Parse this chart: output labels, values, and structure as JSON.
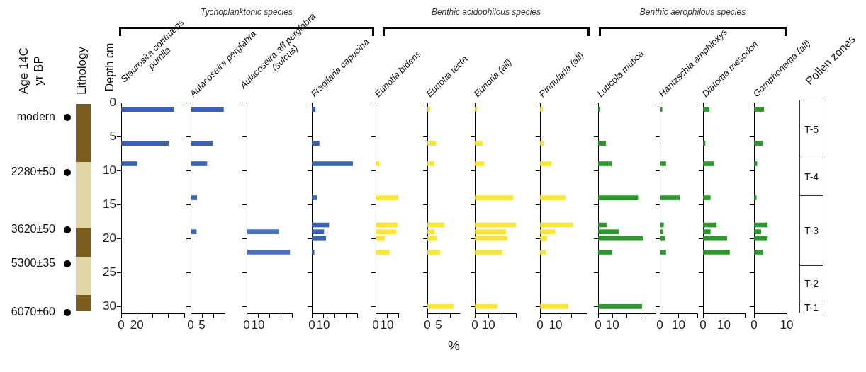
{
  "chart_data": [
    {
      "type": "other",
      "title": "Lithology",
      "ylabel": "Age 14C yr BP",
      "annotations": [
        "modern",
        "2280±50",
        "3620±50",
        "5300±35",
        "6070±60"
      ]
    },
    {
      "type": "other",
      "annotations": [
        "Tychoplanktonic species",
        "Benthic acidophilous species",
        "Benthic aerophilous species"
      ]
    },
    {
      "type": "bar",
      "orientation": "horizontal",
      "title": "Staurosira contruens pumila",
      "ylabel": "Depth cm",
      "color": "#3b62b0",
      "x": [
        1,
        6,
        9
      ],
      "values": [
        67,
        60,
        20
      ],
      "xlim": [
        0,
        80
      ],
      "xticks": [
        0,
        20,
        {
          "value": 40,
          "label": null
        },
        {
          "value": 60,
          "label": null
        },
        {
          "value": 80,
          "label": null
        }
      ],
      "ylim": [
        31,
        0
      ],
      "yticks": [
        0,
        5,
        10,
        15,
        20,
        25,
        30
      ]
    },
    {
      "type": "bar",
      "orientation": "horizontal",
      "title": "Aulacoseira perglabra",
      "color": "#3b62b0",
      "x": [
        1,
        6,
        9,
        14,
        19
      ],
      "values": [
        14.5,
        9.7,
        7.2,
        2.7,
        2.5
      ],
      "xlim": [
        0,
        15
      ],
      "xticks": [
        0,
        5,
        {
          "value": 10,
          "label": null
        },
        {
          "value": 15,
          "label": null
        }
      ],
      "ylim": [
        31,
        0
      ],
      "yticks": [
        0,
        5,
        10,
        15,
        20,
        25,
        30
      ],
      "tick_labels": "x"
    },
    {
      "type": "bar",
      "orientation": "horizontal",
      "title": "Aulacoseira aff perglabra (sulcus)",
      "color": "#4a70bb",
      "x": [
        19,
        22
      ],
      "values": [
        28.5,
        38
      ],
      "xlim": [
        0,
        40
      ],
      "xticks": [
        0,
        10,
        {
          "value": 20,
          "label": null
        },
        {
          "value": 30,
          "label": null
        },
        {
          "value": 40,
          "label": null
        }
      ],
      "ylim": [
        31,
        0
      ],
      "yticks": [
        0,
        5,
        10,
        15,
        20,
        25,
        30
      ],
      "tick_labels": "x"
    },
    {
      "type": "bar",
      "orientation": "horizontal",
      "title": "Fragilaria capucina",
      "color": "#3b62b0",
      "x": [
        1,
        6,
        9,
        14,
        18,
        19,
        20,
        22
      ],
      "values": [
        3,
        6.5,
        36,
        4.4,
        15,
        10.6,
        12.3,
        2
      ],
      "xlim": [
        0,
        40
      ],
      "xticks": [
        0,
        10,
        {
          "value": 20,
          "label": null
        },
        {
          "value": 30,
          "label": null
        },
        {
          "value": 40,
          "label": null
        }
      ],
      "ylim": [
        31,
        0
      ],
      "yticks": [
        0,
        5,
        10,
        15,
        20,
        25,
        30
      ],
      "tick_labels": "x"
    },
    {
      "type": "bar",
      "orientation": "horizontal",
      "title": "Eunotia bidens",
      "color": "#f9e43a",
      "x": [
        9,
        14,
        18,
        19,
        20,
        22
      ],
      "values": [
        3,
        20,
        19,
        18,
        7.7,
        12
      ],
      "xlim": [
        0,
        20
      ],
      "xticks": [
        0,
        10,
        {
          "value": 20,
          "label": null
        }
      ],
      "ylim": [
        31,
        0
      ],
      "yticks": [
        0,
        5,
        10,
        15,
        20,
        25,
        30
      ],
      "tick_labels": "x"
    },
    {
      "type": "bar",
      "orientation": "horizontal",
      "title": "Eunotia tecta",
      "xlabel": "%",
      "color": "#f9e43a",
      "x": [
        1,
        6,
        9,
        18,
        19,
        20,
        22,
        30
      ],
      "values": [
        1.1,
        3.6,
        2.9,
        7.4,
        3,
        4,
        5.5,
        11.3
      ],
      "xlim": [
        0,
        14
      ],
      "xticks": [
        0,
        5,
        {
          "value": 10,
          "label": null
        }
      ],
      "ylim": [
        31,
        0
      ],
      "yticks": [
        0,
        5,
        10,
        15,
        20,
        25,
        30
      ],
      "tick_labels": "x"
    },
    {
      "type": "bar",
      "orientation": "horizontal",
      "title": "Eunotia (all)",
      "color": "#f9e43a",
      "x": [
        1,
        6,
        9,
        14,
        18,
        19,
        20,
        22,
        30
      ],
      "values": [
        1.6,
        5.4,
        6.6,
        28,
        30,
        22.7,
        23.6,
        19.8,
        16.3
      ],
      "xlim": [
        0,
        30
      ],
      "xticks": [
        0,
        10,
        {
          "value": 20,
          "label": null
        },
        {
          "value": 30,
          "label": null
        }
      ],
      "ylim": [
        31,
        0
      ],
      "yticks": [
        0,
        5,
        10,
        15,
        20,
        25,
        30
      ],
      "tick_labels": "x"
    },
    {
      "type": "bar",
      "orientation": "horizontal",
      "title": "Pinnularia (all)",
      "color": "#f9e43a",
      "x": [
        1,
        6,
        9,
        14,
        18,
        19,
        20,
        22,
        30
      ],
      "values": [
        1.8,
        2.4,
        7.3,
        16.2,
        21,
        9.6,
        4.3,
        3.7,
        18
      ],
      "xlim": [
        0,
        30
      ],
      "xticks": [
        0,
        10,
        {
          "value": 20,
          "label": null
        },
        {
          "value": 30,
          "label": null
        }
      ],
      "ylim": [
        31,
        0
      ],
      "yticks": [
        0,
        5,
        10,
        15,
        20,
        25,
        30
      ],
      "tick_labels": "x"
    },
    {
      "type": "bar",
      "orientation": "horizontal",
      "title": "Luticola mutica",
      "color": "#2f962f",
      "x": [
        1,
        6,
        9,
        14,
        18,
        19,
        20,
        22,
        30
      ],
      "values": [
        1.2,
        5.3,
        9.3,
        27.7,
        5.7,
        14.3,
        31,
        9.8,
        30.5
      ],
      "xlim": [
        0,
        40
      ],
      "xticks": [
        0,
        10,
        {
          "value": 20,
          "label": null
        },
        {
          "value": 30,
          "label": null
        },
        {
          "value": 40,
          "label": null
        }
      ],
      "ylim": [
        31,
        0
      ],
      "yticks": [
        0,
        5,
        10,
        15,
        20,
        25,
        30
      ],
      "tick_labels": "x"
    },
    {
      "type": "bar",
      "orientation": "horizontal",
      "title": "Hantzschia amphioxys",
      "color": "#2f962f",
      "x": [
        1,
        6,
        9,
        14,
        18,
        19,
        20,
        22
      ],
      "values": [
        1.2,
        0.3,
        3.2,
        10.5,
        2,
        1.8,
        2.6,
        3.2
      ],
      "xlim": [
        0,
        20
      ],
      "xticks": [
        0,
        10,
        {
          "value": 20,
          "label": null
        }
      ],
      "ylim": [
        31,
        0
      ],
      "yticks": [
        0,
        5,
        10,
        15,
        20,
        25,
        30
      ],
      "tick_labels": "x"
    },
    {
      "type": "bar",
      "orientation": "horizontal",
      "title": "Diatoma mesodon",
      "color": "#2f962f",
      "x": [
        1,
        6,
        9,
        14,
        18,
        19,
        20,
        22
      ],
      "values": [
        3,
        1,
        5.2,
        3.5,
        6.4,
        3.5,
        11.4,
        12.7
      ],
      "xlim": [
        0,
        20
      ],
      "xticks": [
        0,
        10,
        {
          "value": 20,
          "label": null
        }
      ],
      "ylim": [
        31,
        0
      ],
      "yticks": [
        0,
        5,
        10,
        15,
        20,
        25,
        30
      ],
      "tick_labels": "x"
    },
    {
      "type": "bar",
      "orientation": "horizontal",
      "title": "Gomphonema (all)",
      "color": "#2f962f",
      "x": [
        1,
        6,
        9,
        14,
        18,
        19,
        20,
        22
      ],
      "values": [
        3,
        2.6,
        0.9,
        0.7,
        4.1,
        2.1,
        4.1,
        2.6
      ],
      "xlim": [
        0,
        10
      ],
      "xticks": [
        0,
        10
      ],
      "ylim": [
        31,
        0
      ],
      "yticks": [
        0,
        5,
        10,
        15,
        20,
        25,
        30
      ],
      "tick_labels": "x"
    },
    {
      "type": "other",
      "title": "Pollen zones",
      "annotations": [
        "T-5",
        "T-4",
        "T-3",
        "T-2",
        "T-1"
      ]
    }
  ]
}
